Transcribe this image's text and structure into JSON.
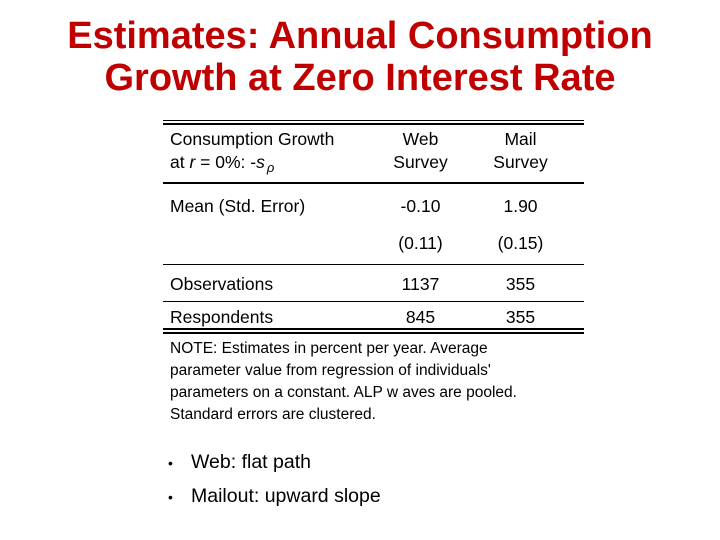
{
  "slide": {
    "title": "Estimates: Annual Consumption\nGrowth at Zero Interest Rate",
    "title_color": "#c00000"
  },
  "table": {
    "header": {
      "label_line1": "Consumption Growth",
      "label_line2": {
        "pre": "at ",
        "r": "r",
        "mid": " = 0%: -",
        "s": "s",
        "rho": "ρ"
      },
      "col_web": {
        "line1": "Web",
        "line2": "Survey"
      },
      "col_mail": {
        "line1": "Mail",
        "line2": "Survey"
      }
    },
    "rows": [
      {
        "label": "Mean (Std. Error)",
        "web": "-0.10",
        "mail": "1.90"
      },
      {
        "label": "",
        "web": "(0.11)",
        "mail": "(0.15)"
      },
      {
        "label": "Observations",
        "web": "1137",
        "mail": "355"
      },
      {
        "label": "Respondents",
        "web": "845",
        "mail": "355"
      }
    ],
    "note": "NOTE: Estimates in percent per year. Average\nparameter value from regression of individuals'\nparameters on a constant. ALP w aves are pooled.\nStandard errors are clustered."
  },
  "bullets": {
    "items": [
      "Web: flat path",
      "Mailout: upward slope"
    ]
  }
}
